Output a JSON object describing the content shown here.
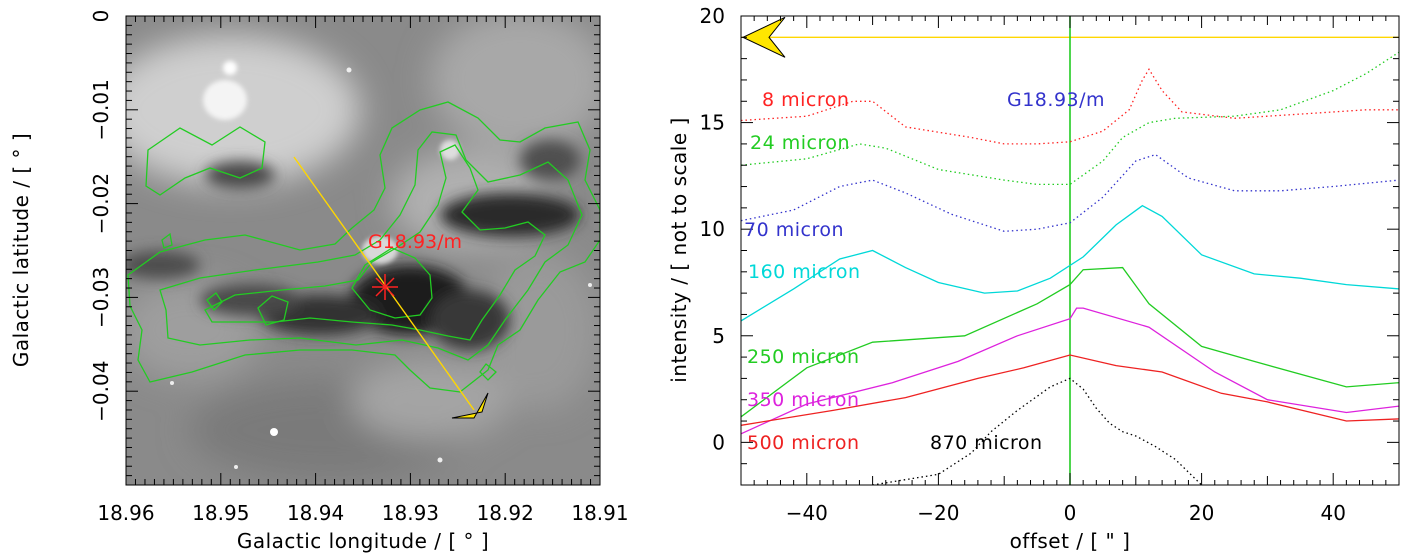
{
  "chart_data": [
    {
      "type": "image",
      "xlabel": "Galactic longitude / [ ° ]",
      "ylabel": "Galactic latitude / [ ° ]",
      "xlim": [
        18.96,
        18.91
      ],
      "ylim": [
        -0.05,
        0.0
      ],
      "xticks": [
        "18.96",
        "18.95",
        "18.94",
        "18.93",
        "18.92",
        "18.91"
      ],
      "yticks": [
        "0",
        "−0.01",
        "−0.02",
        "−0.03",
        "−0.04"
      ],
      "source_label": "G18.93/m",
      "source_position": [
        18.931,
        -0.029
      ],
      "cut_line": {
        "start": [
          18.9413,
          -0.0155
        ],
        "end": [
          18.9244,
          -0.0422
        ]
      },
      "colors": {
        "contours": "#22cc22",
        "cut": "#ffd700",
        "marker": "#ff2222",
        "image": "grayscale"
      }
    },
    {
      "type": "line",
      "xlabel": "offset / [ \" ]",
      "ylabel": "intensity / [ not to scale ]",
      "xlim": [
        -50,
        50
      ],
      "ylim": [
        -2,
        20
      ],
      "xticks": [
        "−40",
        "−20",
        "0",
        "20",
        "40"
      ],
      "yticks": [
        "0",
        "5",
        "10",
        "15",
        "20"
      ],
      "annotation": "G18.93/m",
      "vline_x": 0,
      "hline_y": 19,
      "series": [
        {
          "name": "8 micron",
          "color": "#ff2222",
          "style": "dotted",
          "points": [
            [
              -50,
              15.1
            ],
            [
              -40,
              15.3
            ],
            [
              -33,
              16.0
            ],
            [
              -30,
              16.0
            ],
            [
              -25,
              14.8
            ],
            [
              -15,
              14.3
            ],
            [
              -10,
              14.0
            ],
            [
              -5,
              14.0
            ],
            [
              0,
              14.1
            ],
            [
              5,
              14.6
            ],
            [
              9,
              15.6
            ],
            [
              11,
              17.0
            ],
            [
              12,
              17.5
            ],
            [
              14,
              16.5
            ],
            [
              17,
              15.5
            ],
            [
              25,
              15.2
            ],
            [
              35,
              15.4
            ],
            [
              45,
              15.6
            ],
            [
              50,
              15.6
            ]
          ]
        },
        {
          "name": "24 micron",
          "color": "#22cc22",
          "style": "dotted",
          "points": [
            [
              -50,
              13.0
            ],
            [
              -40,
              13.3
            ],
            [
              -32,
              14.0
            ],
            [
              -28,
              13.8
            ],
            [
              -20,
              12.8
            ],
            [
              -10,
              12.3
            ],
            [
              -5,
              12.1
            ],
            [
              0,
              12.1
            ],
            [
              5,
              13.2
            ],
            [
              8,
              14.3
            ],
            [
              12,
              15.0
            ],
            [
              16,
              15.2
            ],
            [
              25,
              15.3
            ],
            [
              32,
              15.6
            ],
            [
              40,
              16.5
            ],
            [
              45,
              17.3
            ],
            [
              50,
              18.3
            ]
          ]
        },
        {
          "name": "70 micron",
          "color": "#3333cc",
          "style": "dotted",
          "points": [
            [
              -50,
              10.4
            ],
            [
              -42,
              10.9
            ],
            [
              -35,
              12.0
            ],
            [
              -30,
              12.3
            ],
            [
              -25,
              11.7
            ],
            [
              -18,
              10.7
            ],
            [
              -10,
              9.9
            ],
            [
              -5,
              10.0
            ],
            [
              0,
              10.3
            ],
            [
              5,
              11.5
            ],
            [
              10,
              13.2
            ],
            [
              13,
              13.5
            ],
            [
              18,
              12.4
            ],
            [
              25,
              11.8
            ],
            [
              32,
              11.8
            ],
            [
              40,
              12.0
            ],
            [
              50,
              12.3
            ]
          ]
        },
        {
          "name": "160 micron",
          "color": "#00d8d8",
          "style": "solid",
          "points": [
            [
              -50,
              5.7
            ],
            [
              -42,
              7.2
            ],
            [
              -35,
              8.6
            ],
            [
              -30,
              9.0
            ],
            [
              -25,
              8.2
            ],
            [
              -20,
              7.5
            ],
            [
              -13,
              7.0
            ],
            [
              -8,
              7.1
            ],
            [
              -3,
              7.7
            ],
            [
              2,
              8.7
            ],
            [
              7,
              10.2
            ],
            [
              11,
              11.1
            ],
            [
              14,
              10.6
            ],
            [
              20,
              8.8
            ],
            [
              28,
              7.9
            ],
            [
              35,
              7.7
            ],
            [
              42,
              7.4
            ],
            [
              50,
              7.2
            ]
          ]
        },
        {
          "name": "250 micron",
          "color": "#22cc22",
          "style": "solid",
          "points": [
            [
              -50,
              1.2
            ],
            [
              -40,
              3.5
            ],
            [
              -30,
              4.7
            ],
            [
              -16,
              5.0
            ],
            [
              -5,
              6.5
            ],
            [
              0,
              7.4
            ],
            [
              2,
              8.1
            ],
            [
              8,
              8.2
            ],
            [
              12,
              6.5
            ],
            [
              20,
              4.5
            ],
            [
              28,
              3.8
            ],
            [
              42,
              2.6
            ],
            [
              50,
              2.8
            ]
          ]
        },
        {
          "name": "350 micron",
          "color": "#dd22dd",
          "style": "solid",
          "points": [
            [
              -50,
              0.4
            ],
            [
              -40,
              1.8
            ],
            [
              -27,
              2.8
            ],
            [
              -17,
              3.8
            ],
            [
              -8,
              5.0
            ],
            [
              0,
              5.8
            ],
            [
              1,
              6.3
            ],
            [
              2,
              6.3
            ],
            [
              12,
              5.4
            ],
            [
              22,
              3.3
            ],
            [
              30,
              2.0
            ],
            [
              42,
              1.4
            ],
            [
              50,
              1.7
            ]
          ]
        },
        {
          "name": "500 micron",
          "color": "#ee2222",
          "style": "solid",
          "points": [
            [
              -50,
              0.8
            ],
            [
              -36,
              1.5
            ],
            [
              -25,
              2.1
            ],
            [
              -14,
              3.0
            ],
            [
              -7,
              3.5
            ],
            [
              0,
              4.1
            ],
            [
              7,
              3.6
            ],
            [
              14,
              3.3
            ],
            [
              23,
              2.3
            ],
            [
              30,
              1.9
            ],
            [
              42,
              1.0
            ],
            [
              50,
              1.1
            ]
          ]
        },
        {
          "name": "870 micron",
          "color": "#000000",
          "style": "dotted",
          "points": [
            [
              -30,
              -2.0
            ],
            [
              -20,
              -1.5
            ],
            [
              -15,
              -0.5
            ],
            [
              -12,
              0.5
            ],
            [
              -8,
              1.5
            ],
            [
              -3,
              2.6
            ],
            [
              0,
              3.0
            ],
            [
              2,
              2.5
            ],
            [
              4,
              1.6
            ],
            [
              6,
              0.9
            ],
            [
              8,
              0.5
            ],
            [
              10,
              0.3
            ],
            [
              13,
              -0.2
            ],
            [
              16,
              -0.8
            ],
            [
              20,
              -2.0
            ]
          ]
        }
      ]
    }
  ]
}
